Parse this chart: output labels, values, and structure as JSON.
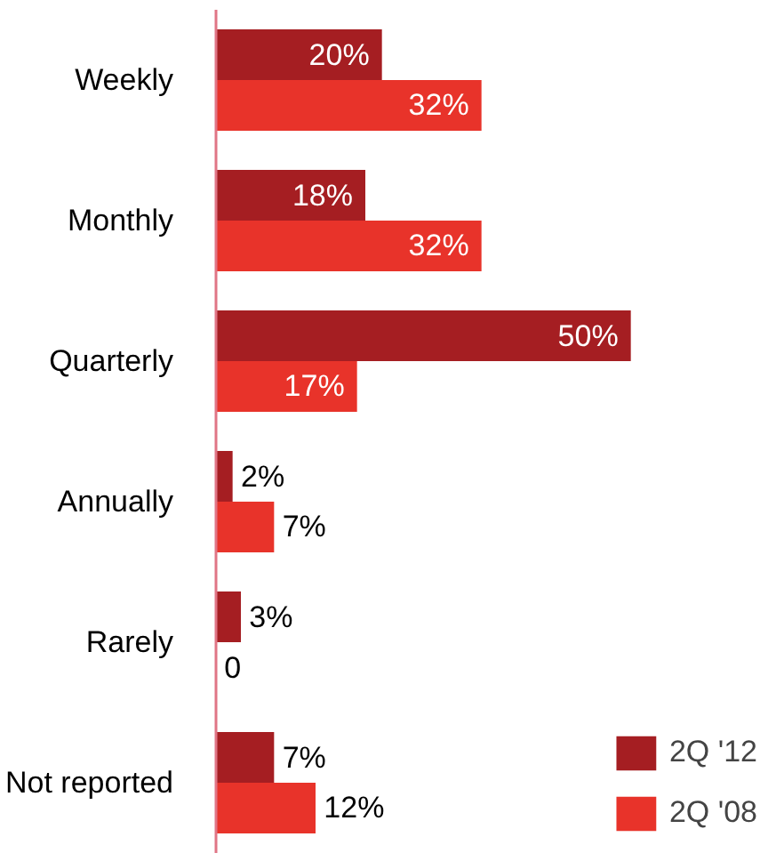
{
  "chart_data": {
    "type": "bar",
    "orientation": "horizontal",
    "categories": [
      "Weekly",
      "Monthly",
      "Quarterly",
      "Annually",
      "Rarely",
      "Not reported"
    ],
    "series": [
      {
        "name": "2Q '12",
        "color": "#a51e22",
        "values": [
          20,
          18,
          50,
          2,
          3,
          7
        ],
        "value_labels": [
          "20%",
          "18%",
          "50%",
          "2%",
          "3%",
          "7%"
        ]
      },
      {
        "name": "2Q '08",
        "color": "#e8332a",
        "values": [
          32,
          32,
          17,
          7,
          0,
          12
        ],
        "value_labels": [
          "32%",
          "32%",
          "17%",
          "7%",
          "0",
          "12%"
        ]
      }
    ],
    "legend": "bottom right",
    "grid": false
  }
}
